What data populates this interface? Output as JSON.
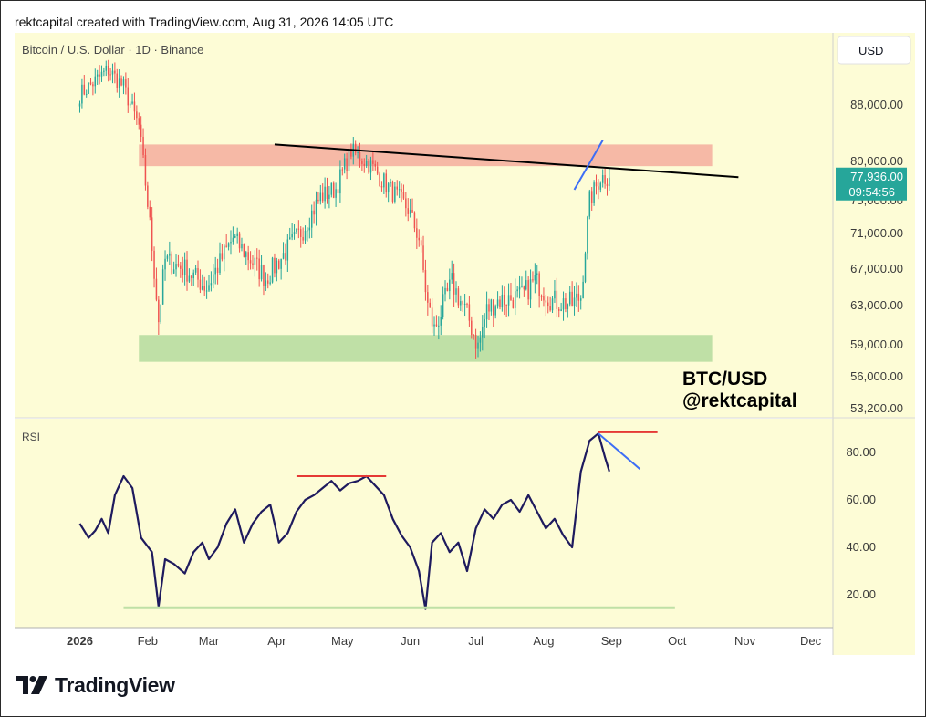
{
  "header": {
    "title": "rektcapital created with TradingView.com, Aug 31, 2026 14:05 UTC"
  },
  "footer": {
    "brand": "TradingView"
  },
  "colors": {
    "panel_bg": "#fdfcd6",
    "resistance_zone": "#f6b9a6",
    "support_zone": "#bfe0a6",
    "candle_up": "#26a69a",
    "candle_down": "#ef5350",
    "rsi_line": "#1e1a5e",
    "trendline": "#000000",
    "annotation_blue": "#3d6ef5",
    "annotation_red": "#e53935",
    "price_tag": "#26a69a"
  },
  "chart_data": [
    {
      "type": "candlestick",
      "title": "Bitcoin / U.S. Dollar · 1D · Binance",
      "currency_button": "USD",
      "watermark": [
        "BTC/USD",
        "@rektcapital"
      ],
      "y_ticks": [
        {
          "label": "88,000.00",
          "value": 88000
        },
        {
          "label": "80,000.00",
          "value": 80000
        },
        {
          "label": "75,000.00",
          "value": 75000
        },
        {
          "label": "71,000.00",
          "value": 71000
        },
        {
          "label": "67,000.00",
          "value": 67000
        },
        {
          "label": "63,000.00",
          "value": 63000
        },
        {
          "label": "59,000.00",
          "value": 59000
        },
        {
          "label": "56,000.00",
          "value": 56000
        },
        {
          "label": "53,200.00",
          "value": 53200
        }
      ],
      "last_price": {
        "label": "77,936.00",
        "countdown": "09:54:56",
        "value": 77936
      },
      "resistance_zone": [
        79400,
        82400
      ],
      "support_zone": [
        57400,
        60000
      ],
      "trendline": [
        {
          "date": "2026-03-31",
          "price": 82400
        },
        {
          "date": "2026-10-29",
          "price": 78000
        }
      ],
      "annotation_line": [
        {
          "date": "2026-08-15",
          "price": 76400
        },
        {
          "date": "2026-08-28",
          "price": 83000
        }
      ],
      "anchors": [
        {
          "date": "2026-01-01",
          "price": 89500
        },
        {
          "date": "2026-01-14",
          "price": 93000
        },
        {
          "date": "2026-01-21",
          "price": 90500
        },
        {
          "date": "2026-01-28",
          "price": 85000
        },
        {
          "date": "2026-02-03",
          "price": 69500
        },
        {
          "date": "2026-02-06",
          "price": 61500
        },
        {
          "date": "2026-02-09",
          "price": 68000
        },
        {
          "date": "2026-02-18",
          "price": 67000
        },
        {
          "date": "2026-02-28",
          "price": 65000
        },
        {
          "date": "2026-03-12",
          "price": 70500
        },
        {
          "date": "2026-03-27",
          "price": 66000
        },
        {
          "date": "2026-04-13",
          "price": 71500
        },
        {
          "date": "2026-04-21",
          "price": 75500
        },
        {
          "date": "2026-04-28",
          "price": 76500
        },
        {
          "date": "2026-05-05",
          "price": 81500
        },
        {
          "date": "2026-05-14",
          "price": 79500
        },
        {
          "date": "2026-05-21",
          "price": 77000
        },
        {
          "date": "2026-05-31",
          "price": 74000
        },
        {
          "date": "2026-06-05",
          "price": 70500
        },
        {
          "date": "2026-06-09",
          "price": 63000
        },
        {
          "date": "2026-06-12",
          "price": 60500
        },
        {
          "date": "2026-06-20",
          "price": 65500
        },
        {
          "date": "2026-06-28",
          "price": 61500
        },
        {
          "date": "2026-07-02",
          "price": 58800
        },
        {
          "date": "2026-07-06",
          "price": 62500
        },
        {
          "date": "2026-07-10",
          "price": 63500
        },
        {
          "date": "2026-07-22",
          "price": 64000
        },
        {
          "date": "2026-07-28",
          "price": 65800
        },
        {
          "date": "2026-08-05",
          "price": 63500
        },
        {
          "date": "2026-08-14",
          "price": 63200
        },
        {
          "date": "2026-08-18",
          "price": 64000
        },
        {
          "date": "2026-08-22",
          "price": 75000
        },
        {
          "date": "2026-08-27",
          "price": 78000
        },
        {
          "date": "2026-08-31",
          "price": 77936
        }
      ]
    },
    {
      "type": "line",
      "title": "RSI",
      "y_ticks": [
        {
          "label": "80.00",
          "value": 80
        },
        {
          "label": "60.00",
          "value": 60
        },
        {
          "label": "40.00",
          "value": 40
        },
        {
          "label": "20.00",
          "value": 20
        }
      ],
      "support_line": {
        "value": 14.5,
        "from": "2026-01-21",
        "to": "2026-09-30"
      },
      "resistance_line_may": {
        "value": 70,
        "from": "2026-04-10",
        "to": "2026-05-21"
      },
      "resistance_line_aug": {
        "value": 88.5,
        "from": "2026-08-26",
        "to": "2026-09-22"
      },
      "divergence_line": [
        {
          "date": "2026-08-26",
          "value": 88
        },
        {
          "date": "2026-09-14",
          "value": 73
        }
      ],
      "x": [
        "2026-01-01",
        "2026-01-05",
        "2026-01-08",
        "2026-01-11",
        "2026-01-14",
        "2026-01-17",
        "2026-01-21",
        "2026-01-25",
        "2026-01-29",
        "2026-02-03",
        "2026-02-06",
        "2026-02-09",
        "2026-02-13",
        "2026-02-18",
        "2026-02-22",
        "2026-02-26",
        "2026-03-01",
        "2026-03-05",
        "2026-03-09",
        "2026-03-13",
        "2026-03-17",
        "2026-03-21",
        "2026-03-25",
        "2026-03-29",
        "2026-04-02",
        "2026-04-06",
        "2026-04-10",
        "2026-04-14",
        "2026-04-18",
        "2026-04-22",
        "2026-04-26",
        "2026-04-30",
        "2026-05-04",
        "2026-05-08",
        "2026-05-12",
        "2026-05-16",
        "2026-05-20",
        "2026-05-24",
        "2026-05-28",
        "2026-06-01",
        "2026-06-05",
        "2026-06-08",
        "2026-06-11",
        "2026-06-15",
        "2026-06-19",
        "2026-06-23",
        "2026-06-27",
        "2026-07-01",
        "2026-07-05",
        "2026-07-09",
        "2026-07-13",
        "2026-07-17",
        "2026-07-21",
        "2026-07-25",
        "2026-07-29",
        "2026-08-02",
        "2026-08-06",
        "2026-08-10",
        "2026-08-14",
        "2026-08-18",
        "2026-08-22",
        "2026-08-26",
        "2026-08-29",
        "2026-08-31"
      ],
      "values": [
        50,
        44,
        47,
        52,
        46,
        62,
        70,
        65,
        44,
        38,
        15,
        35,
        33,
        29,
        38,
        42,
        35,
        40,
        50,
        56,
        42,
        50,
        55,
        58,
        42,
        46,
        55,
        60,
        62,
        65,
        68,
        64,
        67,
        68,
        70,
        66,
        62,
        52,
        45,
        40,
        30,
        14,
        42,
        46,
        38,
        42,
        30,
        48,
        56,
        52,
        58,
        60,
        55,
        62,
        55,
        48,
        52,
        45,
        40,
        72,
        85,
        88,
        78,
        72
      ]
    }
  ],
  "x_ticks": [
    {
      "label": "2026",
      "date": "2026-01-01",
      "bold": true
    },
    {
      "label": "Feb",
      "date": "2026-02-01",
      "bold": false
    },
    {
      "label": "Mar",
      "date": "2026-03-01",
      "bold": false
    },
    {
      "label": "Apr",
      "date": "2026-04-01",
      "bold": false
    },
    {
      "label": "May",
      "date": "2026-05-01",
      "bold": false
    },
    {
      "label": "Jun",
      "date": "2026-06-01",
      "bold": false
    },
    {
      "label": "Jul",
      "date": "2026-07-01",
      "bold": false
    },
    {
      "label": "Aug",
      "date": "2026-08-01",
      "bold": false
    },
    {
      "label": "Sep",
      "date": "2026-09-01",
      "bold": false
    },
    {
      "label": "Oct",
      "date": "2026-10-01",
      "bold": false
    },
    {
      "label": "Nov",
      "date": "2026-11-01",
      "bold": false
    },
    {
      "label": "Dec",
      "date": "2026-12-01",
      "bold": false
    }
  ]
}
